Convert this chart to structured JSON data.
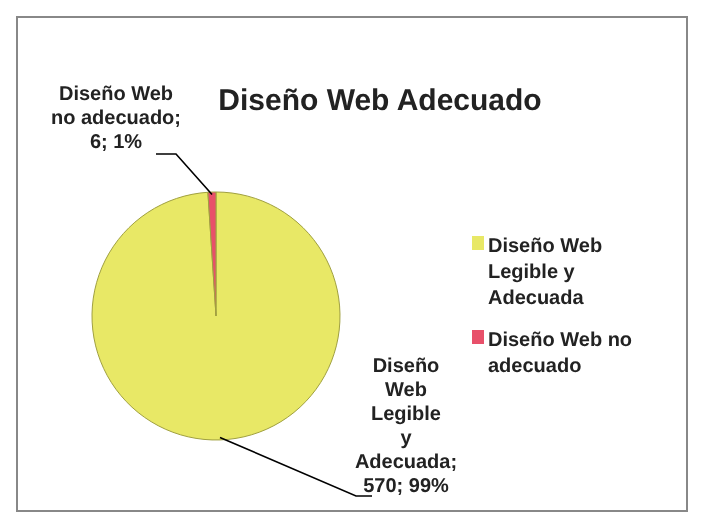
{
  "chart_data": {
    "type": "pie",
    "title": "Diseño Web Adecuado",
    "categories": [
      "Diseño Web Legible y Adecuada",
      "Diseño Web no adecuado"
    ],
    "values": [
      570,
      6
    ],
    "colors": [
      "#e8e866",
      "#e8506a"
    ],
    "value_labels": [
      "Diseño Web Legible y Adecuada; 570; 99%",
      "Diseño Web no adecuado; 6; 1%"
    ],
    "legend": "right"
  }
}
